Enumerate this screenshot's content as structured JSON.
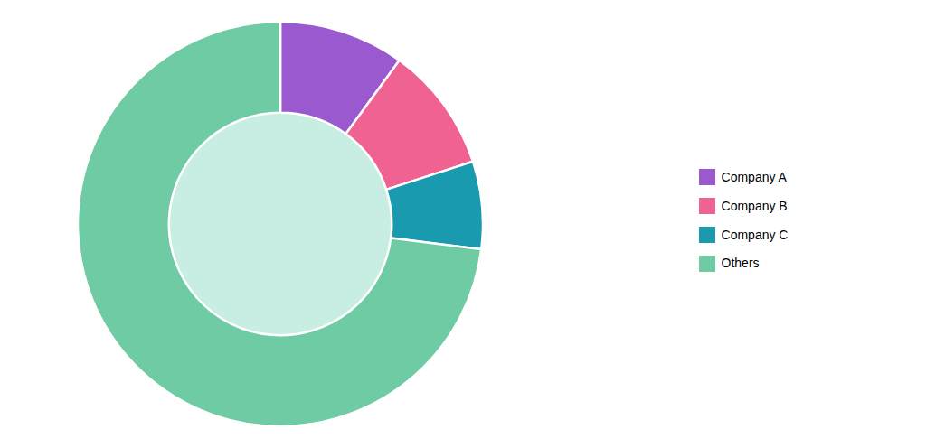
{
  "chart_data": {
    "type": "pie",
    "categories": [
      "Company A",
      "Company B",
      "Company C",
      "Others"
    ],
    "values": [
      10,
      10,
      7,
      73
    ],
    "colors": [
      "#9B59D0",
      "#F06292",
      "#1A9AAF",
      "#6ECBA4"
    ],
    "legend": "right"
  }
}
